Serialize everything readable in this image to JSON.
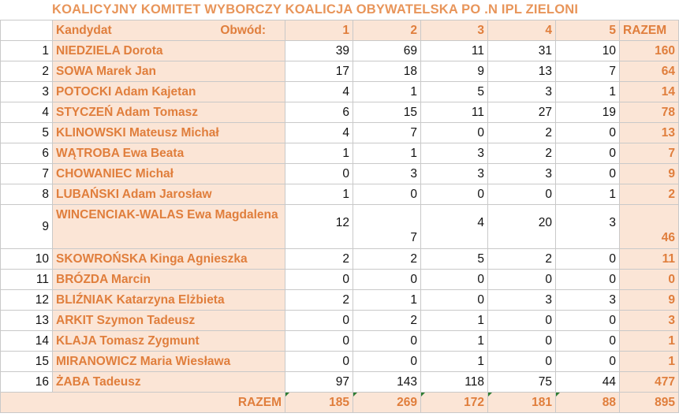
{
  "title": "KOALICYJNY KOMITET WYBORCZY KOALICJA OBYWATELSKA PO .N IPL ZIELONI",
  "header": {
    "kandydat": "Kandydat",
    "obwod": "Obwód:",
    "cols": [
      "1",
      "2",
      "3",
      "4",
      "5"
    ],
    "razem": "RAZEM"
  },
  "rows": [
    {
      "idx": "1",
      "name": "NIEDZIELA Dorota",
      "v": [
        "39",
        "69",
        "11",
        "31",
        "10"
      ],
      "sum": "160"
    },
    {
      "idx": "2",
      "name": "SOWA Marek Jan",
      "v": [
        "17",
        "18",
        "9",
        "13",
        "7"
      ],
      "sum": "64"
    },
    {
      "idx": "3",
      "name": "POTOCKI Adam Kajetan",
      "v": [
        "4",
        "1",
        "5",
        "3",
        "1"
      ],
      "sum": "14"
    },
    {
      "idx": "4",
      "name": "STYCZEŃ Adam Tomasz",
      "v": [
        "6",
        "15",
        "11",
        "27",
        "19"
      ],
      "sum": "78"
    },
    {
      "idx": "5",
      "name": "KLINOWSKI Mateusz Michał",
      "v": [
        "4",
        "7",
        "0",
        "2",
        "0"
      ],
      "sum": "13"
    },
    {
      "idx": "6",
      "name": "WĄTROBA Ewa Beata",
      "v": [
        "1",
        "1",
        "3",
        "2",
        "0"
      ],
      "sum": "7"
    },
    {
      "idx": "7",
      "name": "CHOWANIEC Michał",
      "v": [
        "0",
        "3",
        "3",
        "3",
        "0"
      ],
      "sum": "9"
    },
    {
      "idx": "8",
      "name": "LUBAŃSKI Adam Jarosław",
      "v": [
        "1",
        "0",
        "0",
        "0",
        "1"
      ],
      "sum": "2"
    },
    {
      "idx": "9",
      "name": "WINCENCIAK-WALAS Ewa Magdalena",
      "v": [
        "12",
        "7",
        "4",
        "20",
        "3"
      ],
      "sum": "46"
    },
    {
      "idx": "10",
      "name": "SKOWROŃSKA Kinga Agnieszka",
      "v": [
        "2",
        "2",
        "5",
        "2",
        "0"
      ],
      "sum": "11"
    },
    {
      "idx": "11",
      "name": "BRÓZDA Marcin",
      "v": [
        "0",
        "0",
        "0",
        "0",
        "0"
      ],
      "sum": "0"
    },
    {
      "idx": "12",
      "name": "BLIŹNIAK Katarzyna Elżbieta",
      "v": [
        "2",
        "1",
        "0",
        "3",
        "3"
      ],
      "sum": "9"
    },
    {
      "idx": "13",
      "name": "ARKIT Szymon Tadeusz",
      "v": [
        "0",
        "2",
        "1",
        "0",
        "0"
      ],
      "sum": "3"
    },
    {
      "idx": "14",
      "name": "KLAJA Tomasz Zygmunt",
      "v": [
        "0",
        "0",
        "1",
        "0",
        "0"
      ],
      "sum": "1"
    },
    {
      "idx": "15",
      "name": "MIRANOWICZ Maria Wiesława",
      "v": [
        "0",
        "0",
        "1",
        "0",
        "0"
      ],
      "sum": "1"
    },
    {
      "idx": "16",
      "name": "ŻABA Tadeusz",
      "v": [
        "97",
        "143",
        "118",
        "75",
        "44"
      ],
      "sum": "477"
    }
  ],
  "total": {
    "label": "RAZEM",
    "v": [
      "185",
      "269",
      "172",
      "181",
      "88"
    ],
    "sum": "895"
  }
}
